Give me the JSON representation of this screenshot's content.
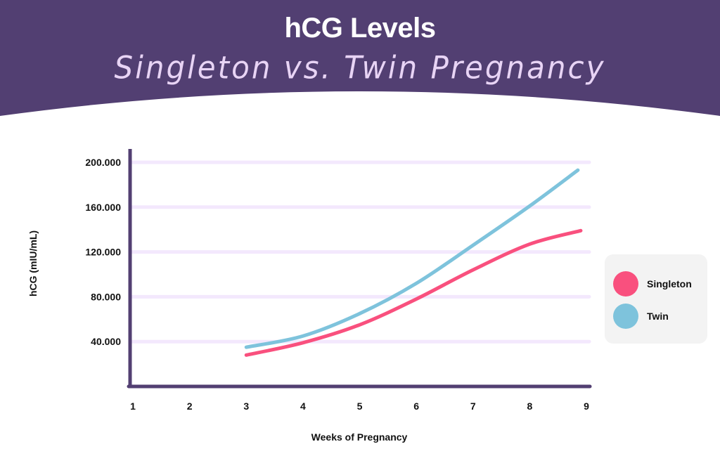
{
  "header": {
    "title": "hCG Levels",
    "subtitle": "Singleton vs. Twin Pregnancy",
    "background": "#523f72",
    "subtitle_color": "#e8d4f5"
  },
  "chart_data": {
    "type": "line",
    "title": "hCG Levels",
    "subtitle": "Singleton vs. Twin Pregnancy",
    "xlabel": "Weeks of Pregnancy",
    "ylabel": "hCG (mIU/mL)",
    "xlim": [
      1,
      9
    ],
    "ylim": [
      0,
      200000
    ],
    "x_ticks": [
      "1",
      "2",
      "3",
      "4",
      "5",
      "6",
      "7",
      "8",
      "9"
    ],
    "y_ticks": [
      "40.000",
      "80.000",
      "120.000",
      "160.000",
      "200.000"
    ],
    "y_tick_values": [
      40000,
      80000,
      120000,
      160000,
      200000
    ],
    "grid": "horizontal",
    "legend_position": "right",
    "series": [
      {
        "name": "Singleton",
        "color": "#f9507e",
        "x": [
          3,
          4,
          5,
          6,
          7,
          8,
          8.9
        ],
        "y": [
          28000,
          39000,
          55000,
          78000,
          104000,
          127000,
          139000
        ]
      },
      {
        "name": "Twin",
        "color": "#7ec3dc",
        "x": [
          3,
          4,
          5,
          6,
          7,
          8,
          8.85
        ],
        "y": [
          35000,
          45000,
          65000,
          92000,
          126000,
          161000,
          193000
        ]
      }
    ],
    "axis_color": "#523f72",
    "grid_color": "#f3e8fd"
  }
}
